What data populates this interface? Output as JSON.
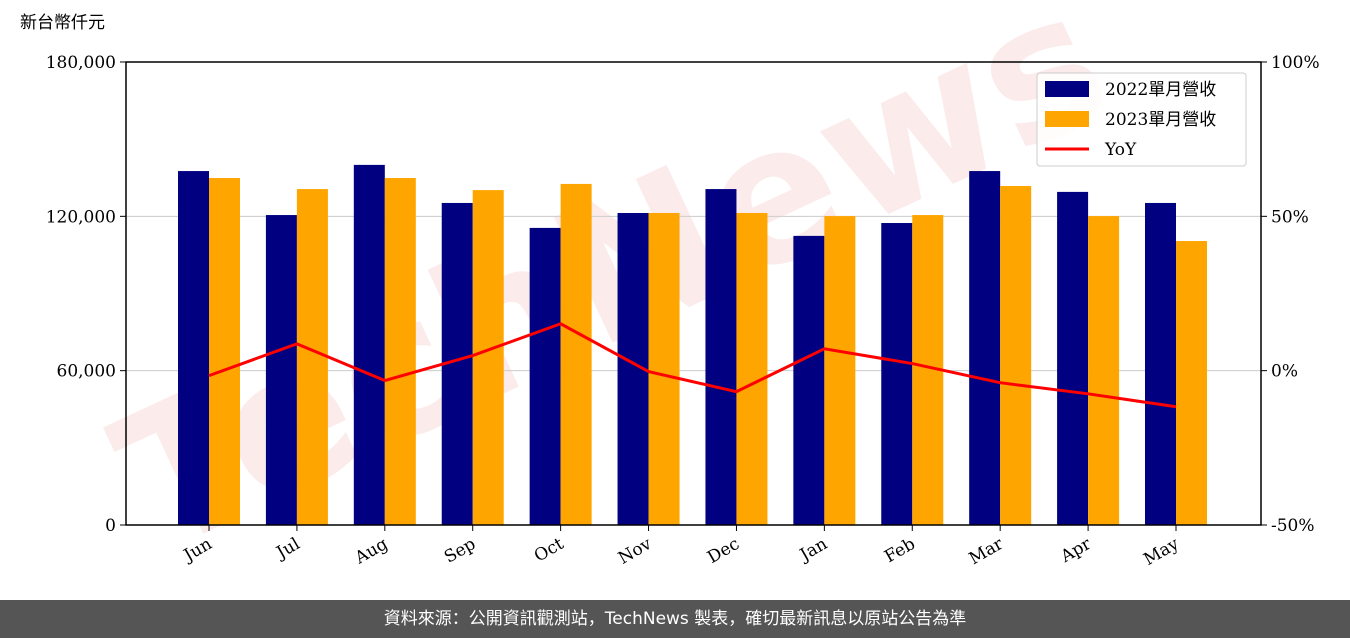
{
  "chart_data": {
    "type": "bar-line",
    "unit_label": "新台幣仟元",
    "watermark": "TechNews",
    "categories": [
      "Jun",
      "Jul",
      "Aug",
      "Sep",
      "Oct",
      "Nov",
      "Dec",
      "Jan",
      "Feb",
      "Mar",
      "Apr",
      "May"
    ],
    "series": [
      {
        "name": "2022單月營收",
        "color": "#000080",
        "values": [
          137600,
          120500,
          140000,
          125200,
          115500,
          121300,
          130600,
          112400,
          117400,
          137600,
          129500,
          125200
        ]
      },
      {
        "name": "2023單月營收",
        "color": "#ffa500",
        "values": [
          134900,
          130600,
          134900,
          130200,
          132600,
          121300,
          121300,
          120100,
          120500,
          131800,
          120100,
          110400
        ]
      },
      {
        "name": "YoY",
        "color": "#ff0000",
        "axis": "y2",
        "values": [
          -1.6,
          8.7,
          -3.2,
          4.9,
          15.2,
          -0.3,
          -6.8,
          7.1,
          2.3,
          -3.9,
          -7.5,
          -11.7
        ]
      }
    ],
    "ylim": [
      0,
      180000
    ],
    "yticks": [
      0,
      {
        "value": 60000,
        "label": "60,000"
      },
      {
        "value": 120000,
        "label": "120,000"
      },
      {
        "value": 180000,
        "label": "180,000"
      }
    ],
    "y2lim": [
      -50,
      100
    ],
    "y2ticks": [
      {
        "value": -50,
        "label": "-50%"
      },
      {
        "value": 0,
        "label": "0%"
      },
      {
        "value": 50,
        "label": "50%"
      },
      {
        "value": 100,
        "label": "100%"
      }
    ],
    "grid": true,
    "legend": "upper right"
  },
  "footer": "資料來源：公開資訊觀測站，TechNews 製表，確切最新訊息以原站公告為準"
}
